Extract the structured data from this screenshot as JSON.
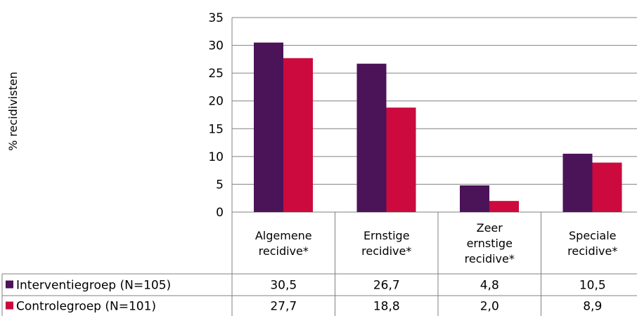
{
  "chart_data": {
    "type": "bar",
    "title": "",
    "xlabel": "",
    "ylabel": "% recidivisten",
    "ylim": [
      0,
      35
    ],
    "yticks": [
      0,
      5,
      10,
      15,
      20,
      25,
      30,
      35
    ],
    "grid": true,
    "legend": "data-table-left",
    "categories": [
      [
        "Algemene",
        "recidive*"
      ],
      [
        "Ernstige",
        "recidive*"
      ],
      [
        "Zeer",
        "ernstige",
        "recidive*"
      ],
      [
        "Speciale",
        "recidive*"
      ]
    ],
    "series": [
      {
        "name": "Interventiegroep (N=105)",
        "color": "#4B1358",
        "values": [
          30.5,
          26.7,
          4.8,
          10.5
        ],
        "labels": [
          "30,5",
          "26,7",
          "4,8",
          "10,5"
        ]
      },
      {
        "name": "Controlegroep (N=101)",
        "color": "#CC0A3E",
        "values": [
          27.7,
          18.8,
          2.0,
          8.9
        ],
        "labels": [
          "27,7",
          "18,8",
          "2,0",
          "8,9"
        ]
      }
    ]
  }
}
